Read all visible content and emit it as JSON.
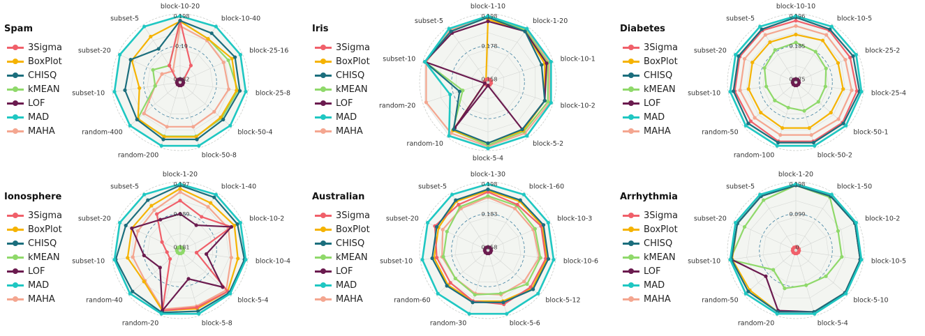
{
  "colors": {
    "3Sigma": "#f0606a",
    "BoxPlot": "#f5b301",
    "CHISQ": "#1b6e7d",
    "kMEAN": "#8fd96a",
    "LOF": "#6b1b4f",
    "MAD": "#1fc7c2",
    "MAHA": "#f4a690"
  },
  "legend": [
    "3Sigma",
    "BoxPlot",
    "CHISQ",
    "kMEAN",
    "LOF",
    "MAD",
    "MAHA"
  ],
  "chart_data": [
    {
      "type": "radar",
      "title": "Spam",
      "axes": [
        "block-10-20",
        "block-10-40",
        "block-25-16",
        "block-25-8",
        "block-50-4",
        "block-50-8",
        "random-200",
        "random-400",
        "subset-10",
        "subset-20",
        "subset-5"
      ],
      "rlabels": [
        "0.182",
        "0.19",
        "0.198"
      ],
      "series": [
        {
          "name": "3Sigma",
          "values": [
            0.93,
            0.3,
            0.05,
            0.05,
            0.05,
            0.05,
            0.05,
            0.05,
            0.05,
            0.05,
            0.3
          ]
        },
        {
          "name": "BoxPlot",
          "values": [
            0.92,
            0.78,
            0.86,
            0.86,
            0.81,
            0.86,
            0.86,
            0.84,
            0.62,
            0.8,
            0.82
          ]
        },
        {
          "name": "CHISQ",
          "values": [
            0.93,
            0.88,
            0.91,
            0.91,
            0.86,
            0.9,
            0.9,
            0.86,
            0.84,
            0.82,
            0.6
          ]
        },
        {
          "name": "kMEAN",
          "values": [
            0.92,
            0.78,
            0.8,
            0.88,
            0.83,
            0.85,
            0.85,
            0.85,
            0.38,
            0.45,
            0.3
          ]
        },
        {
          "name": "LOF",
          "values": [
            0.05,
            0.05,
            0.05,
            0.05,
            0.05,
            0.05,
            0.05,
            0.05,
            0.05,
            0.05,
            0.05
          ]
        },
        {
          "name": "MAD",
          "values": [
            1.0,
            1.0,
            1.0,
            1.0,
            1.0,
            1.0,
            1.0,
            1.0,
            1.0,
            1.0,
            1.0
          ]
        },
        {
          "name": "MAHA",
          "values": [
            0.85,
            0.75,
            0.72,
            0.74,
            0.68,
            0.7,
            0.7,
            0.72,
            0.38,
            0.3,
            0.2
          ]
        }
      ]
    },
    {
      "type": "radar",
      "title": "Iris",
      "axes": [
        "block-1-10",
        "block-1-20",
        "block-10-1",
        "block-10-2",
        "block-5-2",
        "block-5-4",
        "random-10",
        "random-20",
        "subset-10",
        "subset-5"
      ],
      "rlabels": [
        "0.158",
        "0.178",
        "0.198"
      ],
      "series": [
        {
          "name": "3Sigma",
          "values": [
            0.05,
            0.05,
            0.05,
            0.05,
            0.05,
            0.05,
            0.05,
            0.05,
            0.05,
            0.05
          ]
        },
        {
          "name": "BoxPlot",
          "values": [
            0.95,
            0.95,
            0.9,
            0.9,
            0.9,
            0.92,
            0.9,
            0.05,
            0.05,
            0.05
          ]
        },
        {
          "name": "CHISQ",
          "values": [
            0.98,
            0.95,
            0.85,
            0.9,
            0.88,
            0.92,
            0.88,
            0.45,
            1.0,
            0.95
          ]
        },
        {
          "name": "kMEAN",
          "values": [
            0.98,
            0.97,
            0.95,
            0.95,
            0.92,
            0.95,
            0.9,
            0.4,
            1.0,
            0.95
          ]
        },
        {
          "name": "LOF",
          "values": [
            0.92,
            0.95,
            0.93,
            0.9,
            0.88,
            0.05,
            0.85,
            0.05,
            1.0,
            0.92
          ]
        },
        {
          "name": "MAD",
          "values": [
            1.0,
            1.0,
            1.0,
            1.0,
            1.0,
            1.0,
            1.0,
            0.6,
            1.0,
            1.0
          ]
        },
        {
          "name": "MAHA",
          "values": [
            0.98,
            0.98,
            0.97,
            0.98,
            0.95,
            0.97,
            0.95,
            0.98,
            0.98,
            0.97
          ]
        }
      ]
    },
    {
      "type": "radar",
      "title": "Diabetes",
      "axes": [
        "block-10-10",
        "block-10-5",
        "block-25-2",
        "block-25-4",
        "block-50-1",
        "block-50-2",
        "random-100",
        "random-50",
        "subset-10",
        "subset-20",
        "subset-5"
      ],
      "rlabels": [
        "0.175",
        "0.185",
        "0.196"
      ],
      "series": [
        {
          "name": "3Sigma",
          "values": [
            0.93,
            0.93,
            0.9,
            0.93,
            0.93,
            0.93,
            0.93,
            0.9,
            0.93,
            0.93,
            0.93
          ]
        },
        {
          "name": "BoxPlot",
          "values": [
            0.72,
            0.75,
            0.7,
            0.72,
            0.7,
            0.72,
            0.72,
            0.7,
            0.72,
            0.72,
            0.72
          ]
        },
        {
          "name": "CHISQ",
          "values": [
            0.98,
            0.95,
            0.95,
            0.97,
            0.95,
            0.95,
            0.95,
            0.95,
            0.95,
            0.95,
            0.95
          ]
        },
        {
          "name": "kMEAN",
          "values": [
            0.6,
            0.55,
            0.5,
            0.45,
            0.45,
            0.45,
            0.4,
            0.42,
            0.45,
            0.52,
            0.58
          ]
        },
        {
          "name": "LOF",
          "values": [
            0.05,
            0.05,
            0.05,
            0.05,
            0.05,
            0.05,
            0.05,
            0.05,
            0.05,
            0.05,
            0.05
          ]
        },
        {
          "name": "MAD",
          "values": [
            1.0,
            1.0,
            1.0,
            1.0,
            1.0,
            1.0,
            1.0,
            1.0,
            1.0,
            1.0,
            1.0
          ]
        },
        {
          "name": "MAHA",
          "values": [
            0.85,
            0.85,
            0.82,
            0.85,
            0.85,
            0.83,
            0.83,
            0.82,
            0.85,
            0.85,
            0.85
          ]
        }
      ]
    },
    {
      "type": "radar",
      "title": "Ionosphere",
      "axes": [
        "block-1-20",
        "block-1-40",
        "block-10-2",
        "block-10-4",
        "block-5-4",
        "block-5-8",
        "random-20",
        "random-40",
        "subset-10",
        "subset-20",
        "subset-5"
      ],
      "rlabels": [
        "0.181",
        "0.189",
        "0.197"
      ],
      "series": [
        {
          "name": "3Sigma",
          "values": [
            0.75,
            0.6,
            0.85,
            0.25,
            0.95,
            0.9,
            0.95,
            0.2,
            0.2,
            0.3,
            0.65
          ]
        },
        {
          "name": "BoxPlot",
          "values": [
            0.93,
            0.85,
            0.9,
            0.88,
            0.95,
            0.92,
            0.95,
            0.72,
            0.8,
            0.8,
            0.8
          ]
        },
        {
          "name": "CHISQ",
          "values": [
            0.98,
            0.95,
            0.95,
            0.98,
            0.98,
            0.96,
            0.98,
            0.95,
            0.98,
            0.9,
            0.9
          ]
        },
        {
          "name": "kMEAN",
          "values": [
            0.05,
            0.05,
            0.05,
            0.05,
            0.05,
            0.05,
            0.05,
            0.05,
            0.05,
            0.05,
            0.05
          ]
        },
        {
          "name": "LOF",
          "values": [
            0.55,
            0.45,
            0.85,
            0.4,
            0.85,
            0.45,
            0.95,
            0.4,
            0.55,
            0.8,
            0.55
          ]
        },
        {
          "name": "MAD",
          "values": [
            1.0,
            1.0,
            1.0,
            1.0,
            1.0,
            1.0,
            1.0,
            1.0,
            1.0,
            1.0,
            1.0
          ]
        },
        {
          "name": "MAHA",
          "values": [
            0.88,
            0.78,
            0.8,
            0.78,
            0.92,
            0.88,
            0.93,
            0.7,
            0.72,
            0.7,
            0.72
          ]
        }
      ]
    },
    {
      "type": "radar",
      "title": "Australian",
      "axes": [
        "block-1-30",
        "block-1-60",
        "block-10-3",
        "block-10-6",
        "block-5-12",
        "block-5-6",
        "random-30",
        "random-60",
        "subset-10",
        "subset-20",
        "subset-5"
      ],
      "rlabels": [
        "0.158",
        "0.183",
        "0.198"
      ],
      "series": [
        {
          "name": "3Sigma",
          "values": [
            0.88,
            0.82,
            0.88,
            0.88,
            0.85,
            0.85,
            0.8,
            0.75,
            0.78,
            0.88,
            0.82
          ]
        },
        {
          "name": "BoxPlot",
          "values": [
            0.9,
            0.88,
            0.9,
            0.9,
            0.88,
            0.8,
            0.8,
            0.8,
            0.82,
            0.82,
            0.88
          ]
        },
        {
          "name": "CHISQ",
          "values": [
            0.92,
            0.9,
            0.92,
            0.92,
            0.9,
            0.82,
            0.82,
            0.82,
            0.85,
            0.85,
            0.9
          ]
        },
        {
          "name": "kMEAN",
          "values": [
            0.82,
            0.8,
            0.78,
            0.8,
            0.78,
            0.68,
            0.7,
            0.65,
            0.68,
            0.68,
            0.78
          ]
        },
        {
          "name": "LOF",
          "values": [
            0.05,
            0.05,
            0.05,
            0.05,
            0.05,
            0.05,
            0.05,
            0.05,
            0.05,
            0.05,
            0.05
          ]
        },
        {
          "name": "MAD",
          "values": [
            1.0,
            1.0,
            1.0,
            1.0,
            1.0,
            1.0,
            1.0,
            1.0,
            1.0,
            1.0,
            1.0
          ]
        },
        {
          "name": "MAHA",
          "values": [
            0.8,
            0.75,
            0.75,
            0.78,
            0.72,
            0.7,
            0.68,
            0.65,
            0.7,
            0.75,
            0.75
          ]
        }
      ]
    },
    {
      "type": "radar",
      "title": "Arrhythmia",
      "axes": [
        "block-1-20",
        "block-1-50",
        "block-10-2",
        "block-10-5",
        "block-5-10",
        "block-5-4",
        "random-20",
        "random-50",
        "subset-10",
        "subset-20",
        "subset-5"
      ],
      "rlabels": [
        "0",
        "0.099",
        "0.198"
      ],
      "series": [
        {
          "name": "3Sigma",
          "values": [
            0.05,
            0.05,
            0.05,
            0.05,
            0.05,
            0.05,
            0.05,
            0.05,
            0.05,
            0.05,
            0.05
          ]
        },
        {
          "name": "BoxPlot",
          "values": [
            0.98,
            0.97,
            0.98,
            0.98,
            0.98,
            0.97,
            0.97,
            0.92,
            0.97,
            0.97,
            0.97
          ]
        },
        {
          "name": "CHISQ",
          "values": [
            0.98,
            0.97,
            0.98,
            0.98,
            0.98,
            0.97,
            0.97,
            0.95,
            0.98,
            0.97,
            0.97
          ]
        },
        {
          "name": "kMEAN",
          "values": [
            0.98,
            0.95,
            0.7,
            0.7,
            0.6,
            0.55,
            0.6,
            0.45,
            1.0,
            0.85,
            0.9
          ]
        },
        {
          "name": "LOF",
          "values": [
            0.98,
            0.97,
            0.98,
            0.98,
            0.98,
            0.97,
            0.95,
            0.6,
            0.98,
            0.97,
            0.97
          ]
        },
        {
          "name": "MAD",
          "values": [
            1.0,
            1.0,
            1.0,
            1.0,
            1.0,
            1.0,
            1.0,
            1.0,
            1.0,
            1.0,
            1.0
          ]
        },
        {
          "name": "MAHA",
          "values": [
            0.05,
            0.05,
            0.05,
            0.05,
            0.05,
            0.05,
            0.05,
            0.05,
            0.05,
            0.05,
            0.05
          ]
        }
      ]
    }
  ]
}
